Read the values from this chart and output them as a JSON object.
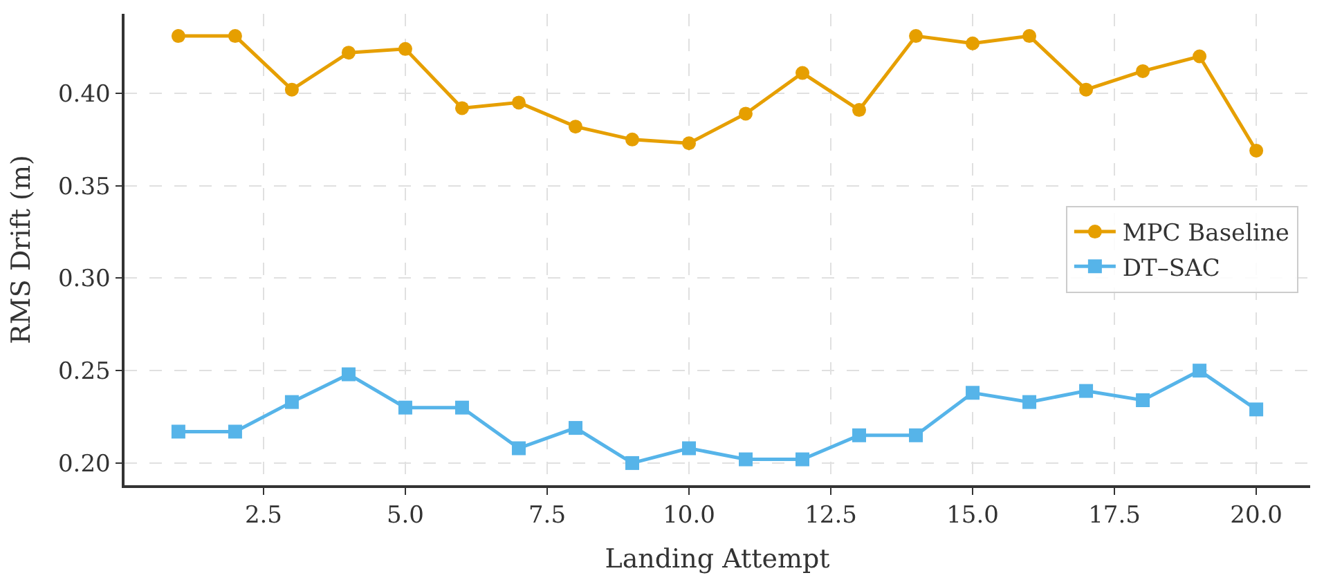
{
  "chart_data": {
    "type": "line",
    "xlabel": "Landing Attempt",
    "ylabel": "RMS Drift (m)",
    "x": [
      1,
      2,
      3,
      4,
      5,
      6,
      7,
      8,
      9,
      10,
      11,
      12,
      13,
      14,
      15,
      16,
      17,
      18,
      19,
      20
    ],
    "series": [
      {
        "name": "MPC Baseline",
        "color": "#e69f00",
        "marker": "circle",
        "values": [
          0.431,
          0.431,
          0.402,
          0.422,
          0.424,
          0.392,
          0.395,
          0.382,
          0.375,
          0.373,
          0.389,
          0.411,
          0.391,
          0.431,
          0.427,
          0.431,
          0.402,
          0.412,
          0.42,
          0.369
        ]
      },
      {
        "name": "DT–SAC",
        "color": "#56b4e9",
        "marker": "square",
        "values": [
          0.217,
          0.217,
          0.233,
          0.248,
          0.23,
          0.23,
          0.208,
          0.219,
          0.2,
          0.208,
          0.202,
          0.202,
          0.215,
          0.215,
          0.238,
          0.233,
          0.239,
          0.234,
          0.25,
          0.229
        ]
      }
    ],
    "xlim": [
      0.05,
      20.95
    ],
    "xticks": [
      {
        "value": 2.5,
        "label": "2.5"
      },
      {
        "value": 5,
        "label": "5.0"
      },
      {
        "value": 7.5,
        "label": "7.5"
      },
      {
        "value": 10,
        "label": "10.0"
      },
      {
        "value": 12.5,
        "label": "12.5"
      },
      {
        "value": 15,
        "label": "15.0"
      },
      {
        "value": 17.5,
        "label": "17.5"
      },
      {
        "value": 20,
        "label": "20.0"
      }
    ],
    "ylim": [
      0.188,
      0.443
    ],
    "yticks": [
      {
        "value": 0.2,
        "label": "0.20"
      },
      {
        "value": 0.25,
        "label": "0.25"
      },
      {
        "value": 0.3,
        "label": "0.30"
      },
      {
        "value": 0.35,
        "label": "0.35"
      },
      {
        "value": 0.4,
        "label": "0.40"
      }
    ],
    "grid": true,
    "legend": "right",
    "line_style": "solid"
  }
}
